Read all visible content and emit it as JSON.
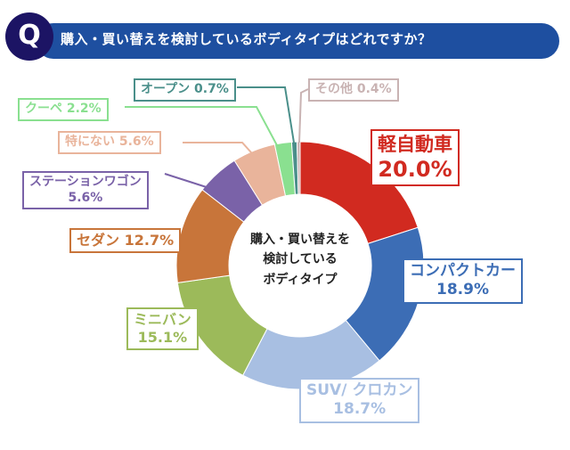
{
  "header": {
    "q_badge": "Q",
    "question": "購入・買い替えを検討しているボディタイプはどれですか？"
  },
  "chart_data": {
    "type": "pie",
    "donut": true,
    "center_label": [
      "購入・買い替えを",
      "検討している",
      "ボディタイプ"
    ],
    "unit": "%",
    "slices": [
      {
        "label": "軽自動車",
        "value": 20.0,
        "display": "20.0%",
        "color": "#d12a20"
      },
      {
        "label": "コンパクトカー",
        "value": 18.9,
        "display": "18.9%",
        "color": "#3c6db5"
      },
      {
        "label": "SUV/ クロカン",
        "value": 18.7,
        "display": "18.7%",
        "color": "#a8bfe2"
      },
      {
        "label": "ミニバン",
        "value": 15.1,
        "display": "15.1%",
        "color": "#9cba5a"
      },
      {
        "label": "セダン",
        "value": 12.7,
        "display": "12.7%",
        "color": "#c8753a"
      },
      {
        "label": "ステーションワゴン",
        "value": 5.6,
        "display": "5.6%",
        "color": "#7a62a8"
      },
      {
        "label": "特にない",
        "value": 5.6,
        "display": "5.6%",
        "color": "#e9b49b"
      },
      {
        "label": "クーペ",
        "value": 2.2,
        "display": "2.2%",
        "color": "#8ae090"
      },
      {
        "label": "オープン",
        "value": 0.7,
        "display": "0.7%",
        "color": "#4a8f8a"
      },
      {
        "label": "その他",
        "value": 0.4,
        "display": "0.4%",
        "color": "#c9b3b3"
      }
    ]
  }
}
